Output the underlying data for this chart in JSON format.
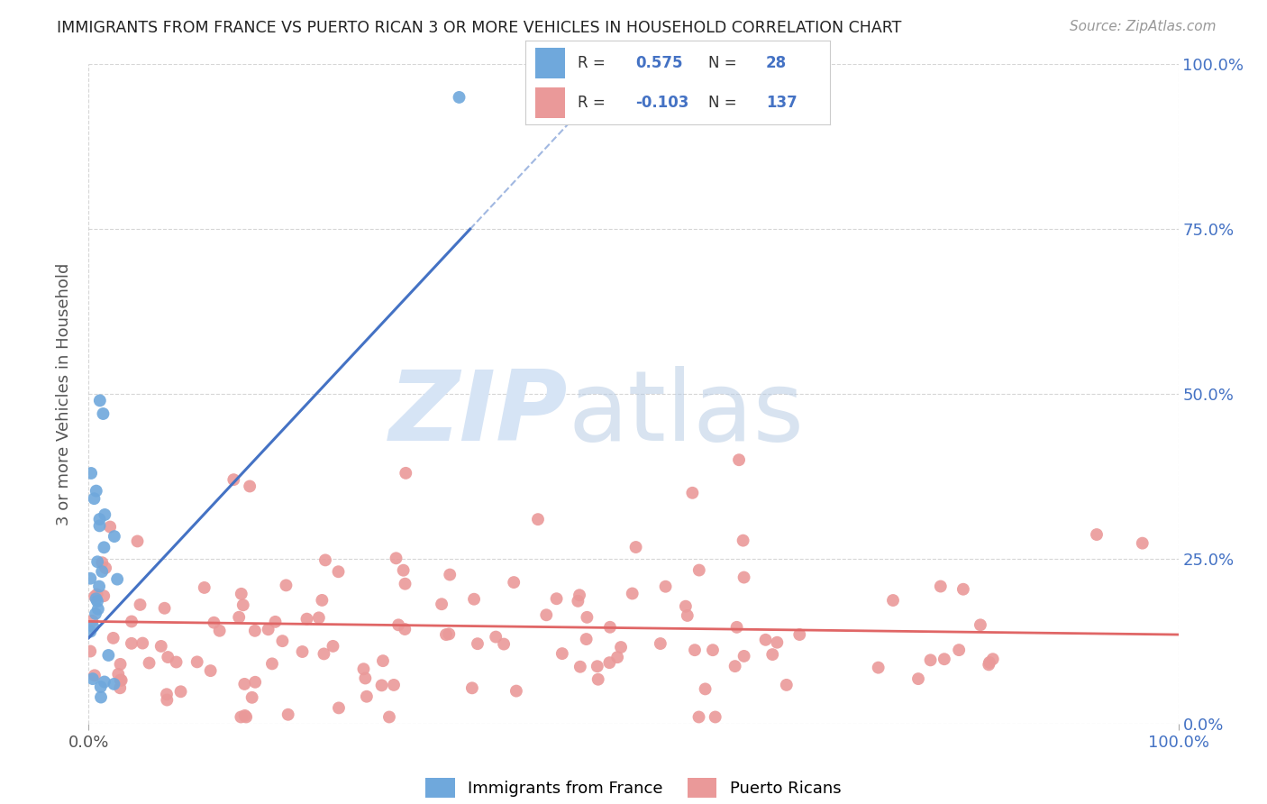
{
  "title": "IMMIGRANTS FROM FRANCE VS PUERTO RICAN 3 OR MORE VEHICLES IN HOUSEHOLD CORRELATION CHART",
  "source": "Source: ZipAtlas.com",
  "ylabel": "3 or more Vehicles in Household",
  "legend_label1": "Immigrants from France",
  "legend_label2": "Puerto Ricans",
  "r1": 0.575,
  "n1": 28,
  "r2": -0.103,
  "n2": 137,
  "color_blue": "#6fa8dc",
  "color_pink": "#ea9999",
  "color_blue_line": "#4472c4",
  "color_pink_line": "#e06666",
  "color_blue_text": "#4472c4",
  "watermark_zip_color": "#d6e4f5",
  "watermark_atlas_color": "#b8cce4",
  "background_color": "#ffffff",
  "grid_color": "#cccccc",
  "ytick_right_color": "#4472c4",
  "xtick_right_color": "#4472c4",
  "blue_line_x0": 0.0,
  "blue_line_y0": 0.13,
  "blue_line_x1": 0.35,
  "blue_line_y1": 0.75,
  "blue_line_solid_end": 0.35,
  "pink_line_x0": 0.0,
  "pink_line_y0": 0.155,
  "pink_line_x1": 1.0,
  "pink_line_y1": 0.135,
  "xlim_min": 0.0,
  "xlim_max": 1.0,
  "ylim_min": 0.0,
  "ylim_max": 1.0,
  "ytick_positions": [
    0.0,
    0.25,
    0.5,
    0.75,
    1.0
  ],
  "ytick_labels_right": [
    "0.0%",
    "25.0%",
    "50.0%",
    "75.0%",
    "100.0%"
  ],
  "xtick_positions": [
    0.0,
    1.0
  ],
  "xtick_labels": [
    "0.0%",
    "100.0%"
  ]
}
